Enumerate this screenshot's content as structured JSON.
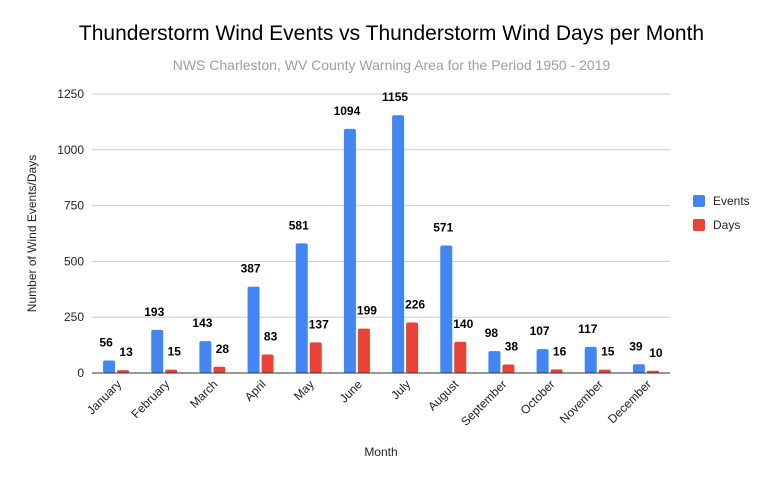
{
  "chart_data": {
    "type": "bar",
    "title": "Thunderstorm Wind Events vs Thunderstorm Wind Days per Month",
    "subtitle": "NWS Charleston, WV County Warning Area for the Period 1950 - 2019",
    "xlabel": "Month",
    "ylabel": "Number of Wind Events/Days",
    "ylim": [
      0,
      1250
    ],
    "yticks": [
      0,
      250,
      500,
      750,
      1000,
      1250
    ],
    "grid": true,
    "legend_position": "right",
    "categories": [
      "January",
      "February",
      "March",
      "April",
      "May",
      "June",
      "July",
      "August",
      "September",
      "October",
      "November",
      "December"
    ],
    "series": [
      {
        "name": "Events",
        "color": "#4285f4",
        "values": [
          56,
          193,
          143,
          387,
          581,
          1094,
          1155,
          571,
          98,
          107,
          117,
          39
        ]
      },
      {
        "name": "Days",
        "color": "#ea4335",
        "values": [
          13,
          15,
          28,
          83,
          137,
          199,
          226,
          140,
          38,
          16,
          15,
          10
        ]
      }
    ]
  }
}
